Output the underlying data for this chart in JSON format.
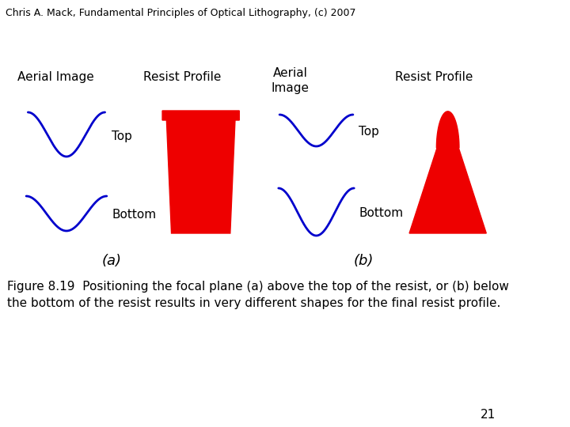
{
  "header": "Chris A. Mack, Fundamental Principles of Optical Lithography, (c) 2007",
  "header_fontsize": 9,
  "caption": "Figure 8.19  Positioning the focal plane (a) above the top of the resist, or (b) below\nthe bottom of the resist results in very different shapes for the final resist profile.",
  "caption_fontsize": 11,
  "page_number": "21",
  "label_a": "(a)",
  "label_b": "(b)",
  "aerial_image_label": "Aerial Image",
  "aerial_image_label_b": "Aerial\nImage",
  "resist_profile_label": "Resist Profile",
  "top_label": "Top",
  "bottom_label": "Bottom",
  "blue_color": "#0000cc",
  "red_color": "#ee0000",
  "background_color": "#ffffff",
  "line_width": 2.0
}
